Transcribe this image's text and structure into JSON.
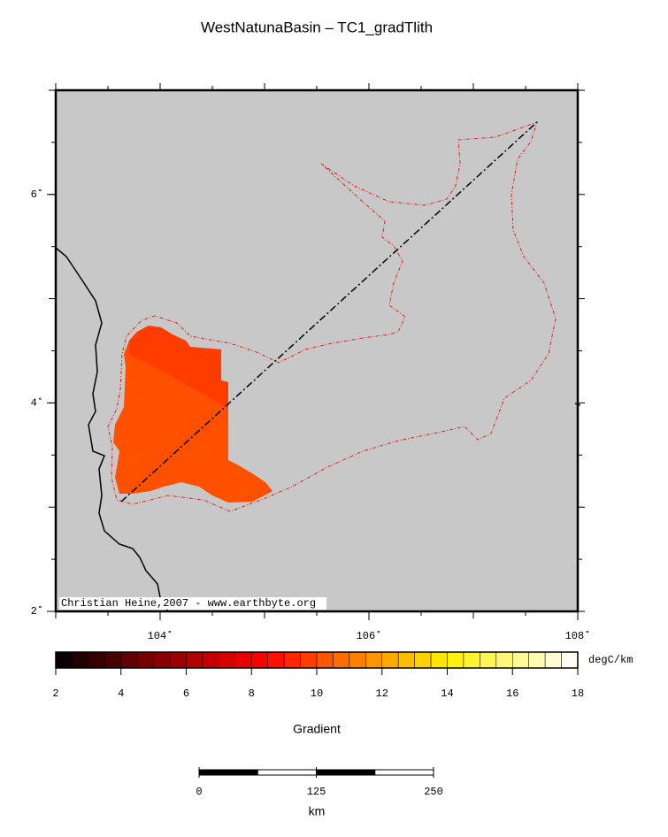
{
  "title": "WestNatunaBasin – TC1_gradTlith",
  "map": {
    "lon_range": [
      103,
      108
    ],
    "lat_range": [
      2,
      7
    ],
    "lon_ticks": [
      {
        "value": 104,
        "label": "104˚"
      },
      {
        "value": 106,
        "label": "106˚"
      },
      {
        "value": 108,
        "label": "108˚"
      }
    ],
    "lat_ticks": [
      {
        "value": 2,
        "label": "2˚"
      },
      {
        "value": 4,
        "label": "4˚"
      },
      {
        "value": 6,
        "label": "6˚"
      }
    ],
    "credit": "Christian Heine,2007 - www.earthbyte.org"
  },
  "colorbar": {
    "label": "Gradient",
    "unit": "degC/km",
    "range": [
      2,
      18
    ],
    "ticks": [
      2,
      4,
      6,
      8,
      10,
      12,
      14,
      16,
      18
    ]
  },
  "scalebar": {
    "unit": "km",
    "ticks": [
      0,
      125,
      250
    ]
  }
}
